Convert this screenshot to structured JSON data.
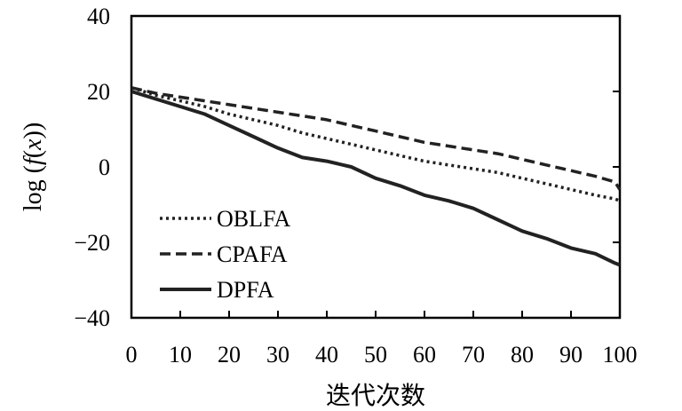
{
  "chart_data": {
    "type": "line",
    "title": "",
    "xlabel": "迭代次数",
    "ylabel": "log (f(x))",
    "ylabel_parts": {
      "prefix": "log (",
      "func": "f",
      "open": "(",
      "var": "x",
      "close": "))"
    },
    "xlim": [
      0,
      100
    ],
    "ylim": [
      -40,
      40
    ],
    "xticks": [
      0,
      10,
      20,
      30,
      40,
      50,
      60,
      70,
      80,
      90,
      100
    ],
    "yticks": [
      40,
      20,
      0,
      -20,
      -40
    ],
    "ytick_labels": [
      "40",
      "20",
      "0",
      "−20",
      "−40"
    ],
    "grid": false,
    "legend_position": "bottom-left",
    "series": [
      {
        "name": "OBLFA",
        "style": "dotted",
        "color": "#222222",
        "x": [
          0,
          5,
          10,
          15,
          20,
          25,
          30,
          35,
          40,
          45,
          50,
          55,
          60,
          65,
          70,
          75,
          80,
          85,
          90,
          95,
          99,
          100
        ],
        "y": [
          21,
          19,
          17.5,
          16,
          14,
          12.5,
          11,
          9,
          7.5,
          6,
          4.5,
          3,
          1.5,
          0.5,
          -0.5,
          -1.5,
          -3,
          -4.5,
          -6,
          -7.5,
          -8.5,
          -9
        ]
      },
      {
        "name": "CPAFA",
        "style": "dashed",
        "color": "#222222",
        "x": [
          0,
          5,
          10,
          15,
          20,
          25,
          30,
          35,
          40,
          45,
          50,
          55,
          60,
          65,
          70,
          75,
          80,
          85,
          90,
          95,
          99,
          100
        ],
        "y": [
          21,
          19.5,
          18.5,
          17.5,
          16.5,
          15.5,
          14.5,
          13.5,
          12.5,
          11,
          9.5,
          8,
          6.5,
          5.5,
          4.5,
          3.5,
          2,
          0.5,
          -1,
          -2.5,
          -4,
          -6
        ]
      },
      {
        "name": "DPFA",
        "style": "solid",
        "color": "#222222",
        "x": [
          0,
          5,
          10,
          15,
          20,
          25,
          30,
          35,
          40,
          45,
          50,
          55,
          60,
          65,
          70,
          75,
          80,
          85,
          90,
          95,
          99,
          100
        ],
        "y": [
          20,
          18,
          16,
          14,
          11,
          8,
          5,
          2.5,
          1.5,
          0,
          -3,
          -5,
          -7.5,
          -9,
          -11,
          -14,
          -17,
          -19,
          -21.5,
          -23,
          -25.5,
          -26
        ]
      }
    ]
  }
}
